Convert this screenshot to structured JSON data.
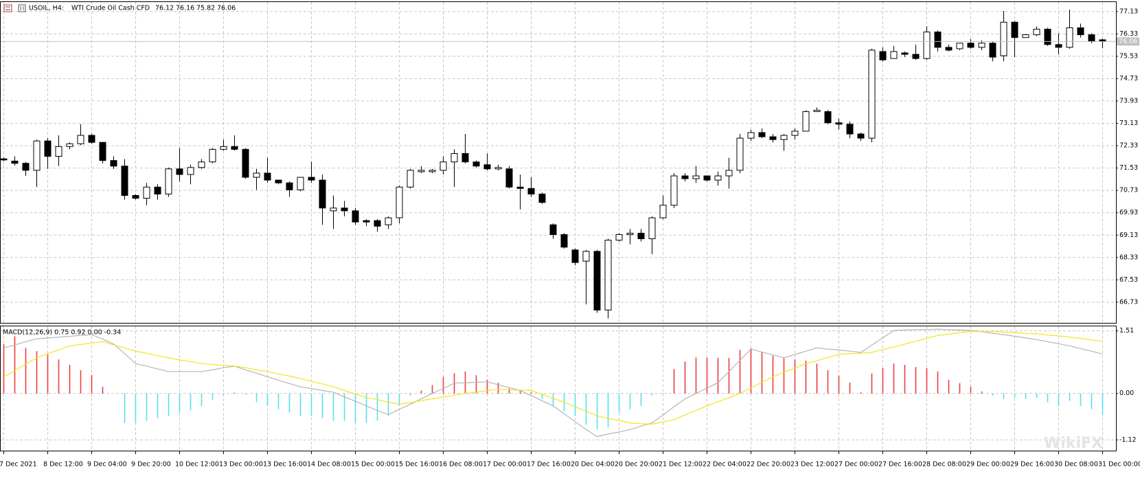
{
  "chart_data": [
    {
      "type": "candlestick",
      "symbol": "USOIL, H4:",
      "description": "WTI Crude Oil Cash CFD",
      "categories": [
        "7 Dec 2021",
        null,
        null,
        null,
        "8 Dec 12:00",
        null,
        null,
        null,
        "9 Dec 04:00",
        null,
        null,
        null,
        "9 Dec 20:00",
        null,
        null,
        null,
        "10 Dec 12:00",
        null,
        null,
        null,
        "13 Dec 00:00",
        null,
        null,
        null,
        "13 Dec 16:00",
        null,
        null,
        null,
        "14 Dec 08:00",
        null,
        null,
        null,
        "15 Dec 00:00",
        null,
        null,
        null,
        "15 Dec 16:00",
        null,
        null,
        null,
        "16 Dec 08:00",
        null,
        null,
        null,
        "17 Dec 00:00",
        null,
        null,
        null,
        "17 Dec 16:00",
        null,
        null,
        null,
        "20 Dec 04:00",
        null,
        null,
        null,
        "20 Dec 20:00",
        null,
        null,
        null,
        "21 Dec 12:00",
        null,
        null,
        null,
        "22 Dec 04:00",
        null,
        null,
        null,
        "22 Dec 20:00",
        null,
        null,
        null,
        "23 Dec 12:00",
        null,
        null,
        null,
        "27 Dec 00:00",
        null,
        null,
        null,
        "27 Dec 16:00",
        null,
        null,
        null,
        "28 Dec 08:00",
        null,
        null,
        null,
        "29 Dec 00:00",
        null,
        null,
        null,
        "29 Dec 16:00",
        null,
        null,
        null,
        "30 Dec 08:00",
        null,
        null,
        null,
        "31 Dec 00:00"
      ],
      "open": [
        71.86,
        71.78,
        71.7,
        71.45,
        72.5,
        71.95,
        72.3,
        72.4,
        72.7,
        72.45,
        71.8,
        71.6,
        70.55,
        70.45,
        70.85,
        70.6,
        71.5,
        71.3,
        71.55,
        71.75,
        72.2,
        72.3,
        72.2,
        71.2,
        71.35,
        71.1,
        71.0,
        70.75,
        71.2,
        71.1,
        70.0,
        70.1,
        70.0,
        69.65,
        69.65,
        69.5,
        69.75,
        70.85,
        71.4,
        71.4,
        71.45,
        71.75,
        72.05,
        71.75,
        71.65,
        71.5,
        71.5,
        70.85,
        70.8,
        70.6,
        69.5,
        69.15,
        68.6,
        68.2,
        68.55,
        66.45,
        68.95,
        69.15,
        69.2,
        69.0,
        69.75,
        70.2,
        71.25,
        71.15,
        71.25,
        71.1,
        71.25,
        71.45,
        72.6,
        72.8,
        72.65,
        72.55,
        72.7,
        72.85,
        73.55,
        73.55,
        73.15,
        73.1,
        72.75,
        72.6,
        75.7,
        75.45,
        75.65,
        75.6,
        75.45,
        76.4,
        75.85,
        75.8,
        76.0,
        75.85,
        76.0,
        75.55,
        76.75,
        76.2,
        76.3,
        76.5,
        75.95,
        75.85,
        76.55,
        76.3,
        76.12
      ],
      "high": [
        71.9,
        71.95,
        71.75,
        72.55,
        72.6,
        72.7,
        72.45,
        73.1,
        72.75,
        72.45,
        71.95,
        71.85,
        70.6,
        71.0,
        70.95,
        71.55,
        72.25,
        71.65,
        71.85,
        72.25,
        72.55,
        72.7,
        72.25,
        71.5,
        71.9,
        71.1,
        71.05,
        71.2,
        71.75,
        71.3,
        70.55,
        70.35,
        70.1,
        69.7,
        69.7,
        69.8,
        70.9,
        71.5,
        71.6,
        71.5,
        71.95,
        72.2,
        72.75,
        71.8,
        72.05,
        71.65,
        71.6,
        71.3,
        71.2,
        70.65,
        69.55,
        69.2,
        68.65,
        68.6,
        68.6,
        69.0,
        69.2,
        69.35,
        69.35,
        69.8,
        70.55,
        71.35,
        71.35,
        71.6,
        71.25,
        71.4,
        71.9,
        72.75,
        72.9,
        72.95,
        72.75,
        72.75,
        72.95,
        73.6,
        73.7,
        73.6,
        73.3,
        73.2,
        72.8,
        75.8,
        75.85,
        75.9,
        75.7,
        75.95,
        76.6,
        76.45,
        75.95,
        76.0,
        76.15,
        76.1,
        76.05,
        77.15,
        76.8,
        76.3,
        76.6,
        76.55,
        76.35,
        77.2,
        76.7,
        76.35,
        76.16
      ],
      "low": [
        71.78,
        71.62,
        71.25,
        70.85,
        71.5,
        71.6,
        72.2,
        72.35,
        72.4,
        71.7,
        71.5,
        70.4,
        70.4,
        70.2,
        70.4,
        70.5,
        71.05,
        70.95,
        71.5,
        71.7,
        72.15,
        72.15,
        71.15,
        70.75,
        71.0,
        70.95,
        70.5,
        70.7,
        71.0,
        69.5,
        69.35,
        69.8,
        69.5,
        69.45,
        69.25,
        69.35,
        69.55,
        70.8,
        71.35,
        71.35,
        71.3,
        70.85,
        71.7,
        71.55,
        71.45,
        71.45,
        70.8,
        70.05,
        70.5,
        70.25,
        69.0,
        68.65,
        68.05,
        66.65,
        66.35,
        66.15,
        68.9,
        68.8,
        68.9,
        68.45,
        69.7,
        70.1,
        71.05,
        71.0,
        71.05,
        70.9,
        70.8,
        71.35,
        72.5,
        72.6,
        72.45,
        72.15,
        72.55,
        72.85,
        73.55,
        73.1,
        72.9,
        72.6,
        72.5,
        72.45,
        75.35,
        75.45,
        75.5,
        75.4,
        75.4,
        75.7,
        75.7,
        75.75,
        75.8,
        75.75,
        75.35,
        75.35,
        75.5,
        76.2,
        76.25,
        75.9,
        75.6,
        75.8,
        76.2,
        76.0,
        75.82
      ],
      "close": [
        71.82,
        71.7,
        71.45,
        72.5,
        71.95,
        72.3,
        72.4,
        72.7,
        72.45,
        71.8,
        71.6,
        70.55,
        70.45,
        70.85,
        70.6,
        71.5,
        71.3,
        71.55,
        71.75,
        72.2,
        72.3,
        72.2,
        71.2,
        71.35,
        71.1,
        71.0,
        70.75,
        71.2,
        71.1,
        70.1,
        70.1,
        70.0,
        69.6,
        69.6,
        69.45,
        69.75,
        70.85,
        71.45,
        71.45,
        71.45,
        71.75,
        72.05,
        71.75,
        71.6,
        71.5,
        71.55,
        70.85,
        70.8,
        70.6,
        70.3,
        69.15,
        68.7,
        68.15,
        68.55,
        66.45,
        68.95,
        69.15,
        69.2,
        69.0,
        69.75,
        70.2,
        71.25,
        71.15,
        71.25,
        71.1,
        71.25,
        71.45,
        72.6,
        72.8,
        72.65,
        72.55,
        72.7,
        72.85,
        73.55,
        73.6,
        73.15,
        73.1,
        72.75,
        72.6,
        75.75,
        75.4,
        75.7,
        75.6,
        75.45,
        76.4,
        75.85,
        75.75,
        76.0,
        75.85,
        76.0,
        75.5,
        76.75,
        76.2,
        76.3,
        76.5,
        75.95,
        75.85,
        76.55,
        76.3,
        76.06,
        76.06
      ],
      "up_color": "#ffffff",
      "down_color": "#000000",
      "ylim": [
        65.99,
        77.47
      ],
      "yticks": [
        77.13,
        76.33,
        75.53,
        74.73,
        73.93,
        73.13,
        72.33,
        71.53,
        70.73,
        69.93,
        69.13,
        68.33,
        67.53,
        66.73
      ],
      "grid": true,
      "watermark": "WikiFX"
    },
    {
      "type": "macd",
      "title": "MACD(12,26,9) 0.75 0.92 0.00 -0.34",
      "histogram": [
        1.19,
        1.38,
        1.1,
        1.02,
        0.94,
        0.82,
        0.69,
        0.56,
        0.44,
        0.16,
        0.0,
        -0.71,
        -0.71,
        -0.66,
        -0.59,
        -0.54,
        -0.46,
        -0.41,
        -0.3,
        -0.16,
        -0.05,
        0.02,
        -0.03,
        -0.21,
        -0.3,
        -0.38,
        -0.46,
        -0.54,
        -0.54,
        -0.59,
        -0.66,
        -0.66,
        -0.71,
        -0.71,
        -0.66,
        -0.54,
        -0.3,
        -0.05,
        0.07,
        0.2,
        0.4,
        0.49,
        0.53,
        0.44,
        0.33,
        0.26,
        0.12,
        0.07,
        0.03,
        -0.13,
        -0.3,
        -0.43,
        -0.54,
        -0.76,
        -0.87,
        -0.82,
        -0.46,
        -0.38,
        -0.3,
        -0.05,
        0.01,
        0.59,
        0.77,
        0.87,
        0.86,
        0.86,
        0.86,
        1.05,
        1.09,
        0.99,
        0.91,
        0.86,
        0.82,
        0.79,
        0.72,
        0.56,
        0.43,
        0.26,
        0.03,
        0.48,
        0.61,
        0.72,
        0.69,
        0.64,
        0.61,
        0.53,
        0.33,
        0.25,
        0.16,
        0.05,
        -0.05,
        -0.13,
        -0.1,
        -0.13,
        -0.1,
        -0.21,
        -0.3,
        -0.18,
        -0.3,
        -0.38,
        -0.51
      ],
      "macd": [
        1.1,
        1.17,
        1.25,
        1.32,
        1.34,
        1.36,
        1.38,
        1.4,
        1.42,
        1.31,
        1.19,
        0.96,
        0.72,
        0.66,
        0.59,
        0.53,
        0.53,
        0.53,
        0.53,
        0.57,
        0.62,
        0.66,
        0.57,
        0.49,
        0.4,
        0.32,
        0.24,
        0.16,
        0.12,
        0.07,
        0.03,
        -0.08,
        -0.19,
        -0.3,
        -0.41,
        -0.51,
        -0.38,
        -0.26,
        -0.13,
        0.0,
        0.12,
        0.25,
        0.26,
        0.27,
        0.28,
        0.21,
        0.14,
        0.07,
        -0.05,
        -0.18,
        -0.3,
        -0.49,
        -0.68,
        -0.87,
        -1.04,
        -0.98,
        -0.93,
        -0.87,
        -0.79,
        -0.71,
        -0.52,
        -0.32,
        -0.13,
        0.0,
        0.13,
        0.26,
        0.53,
        0.8,
        1.07,
        1.0,
        0.93,
        0.86,
        0.94,
        1.02,
        1.1,
        1.07,
        1.05,
        1.02,
        0.99,
        1.17,
        1.34,
        1.52,
        1.53,
        1.54,
        1.54,
        1.55,
        1.54,
        1.53,
        1.52,
        1.49,
        1.45,
        1.42,
        1.38,
        1.34,
        1.3,
        1.25,
        1.2,
        1.15,
        1.08,
        1.02,
        0.95
      ],
      "signal": [
        0.4,
        0.55,
        0.71,
        0.86,
        0.96,
        1.05,
        1.15,
        1.18,
        1.22,
        1.25,
        1.17,
        1.1,
        1.02,
        0.97,
        0.91,
        0.86,
        0.81,
        0.77,
        0.72,
        0.7,
        0.68,
        0.66,
        0.62,
        0.57,
        0.53,
        0.47,
        0.42,
        0.36,
        0.29,
        0.23,
        0.16,
        0.07,
        -0.01,
        -0.1,
        -0.15,
        -0.21,
        -0.26,
        -0.22,
        -0.17,
        -0.13,
        -0.09,
        -0.04,
        0.0,
        0.03,
        0.07,
        0.1,
        0.09,
        0.08,
        0.07,
        -0.02,
        -0.12,
        -0.21,
        -0.32,
        -0.43,
        -0.54,
        -0.6,
        -0.65,
        -0.71,
        -0.73,
        -0.74,
        -0.69,
        -0.63,
        -0.52,
        -0.41,
        -0.3,
        -0.2,
        -0.1,
        0.0,
        0.13,
        0.27,
        0.4,
        0.51,
        0.61,
        0.72,
        0.79,
        0.87,
        0.94,
        0.96,
        0.97,
        0.99,
        1.06,
        1.12,
        1.19,
        1.26,
        1.33,
        1.4,
        1.43,
        1.47,
        1.5,
        1.49,
        1.49,
        1.48,
        1.47,
        1.45,
        1.44,
        1.41,
        1.39,
        1.36,
        1.33,
        1.29,
        1.26
      ],
      "positive_color": "#ef3b3b",
      "negative_color": "#52e0ee",
      "macd_color": "#b4b4b4",
      "signal_color": "#f2e41c",
      "ylim": [
        -1.38,
        1.62
      ],
      "yticks": [
        1.51,
        {
          "value": 0,
          "label": "0.00"
        },
        -1.12
      ],
      "grid": true
    }
  ]
}
